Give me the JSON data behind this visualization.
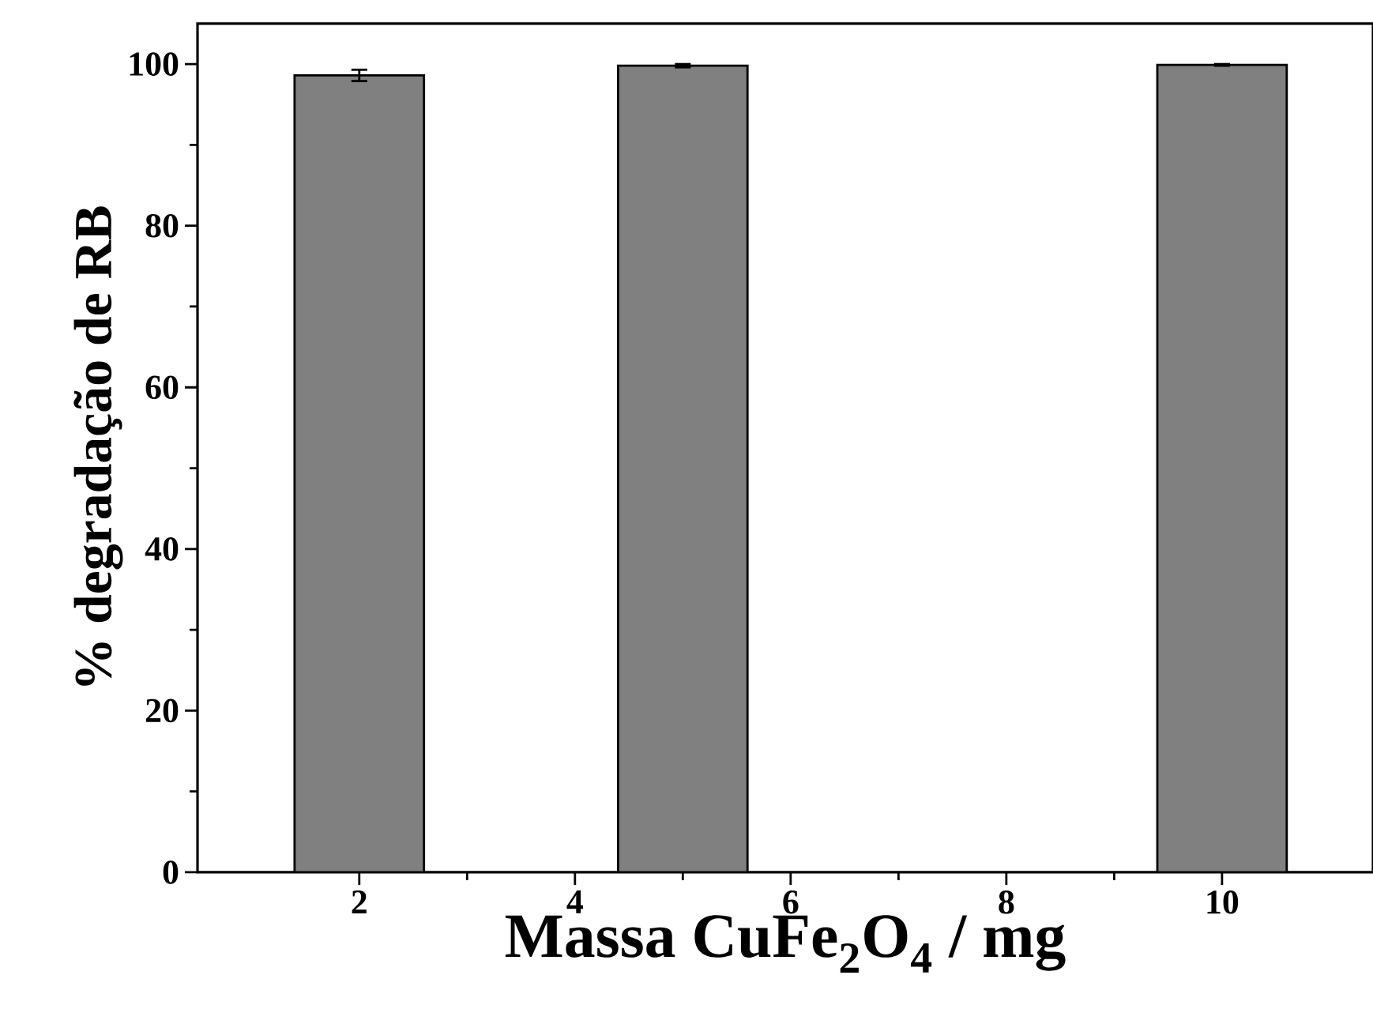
{
  "chart_data": {
    "type": "bar",
    "xlabel": "Massa CuFe$_{2}$O$_{4}$ / mg",
    "ylabel": "% degradação de RB",
    "x": [
      2,
      5,
      10
    ],
    "values": [
      98.6,
      99.8,
      99.9
    ],
    "errors": [
      0.7,
      0.2,
      0.1
    ],
    "color": "#808080",
    "xlim": [
      0.5,
      11.4
    ],
    "xticks": [
      2,
      4,
      6,
      8,
      10
    ],
    "ylim": [
      0,
      105
    ],
    "yticks": [
      0,
      20,
      40,
      60,
      80,
      100
    ],
    "grid": false
  }
}
